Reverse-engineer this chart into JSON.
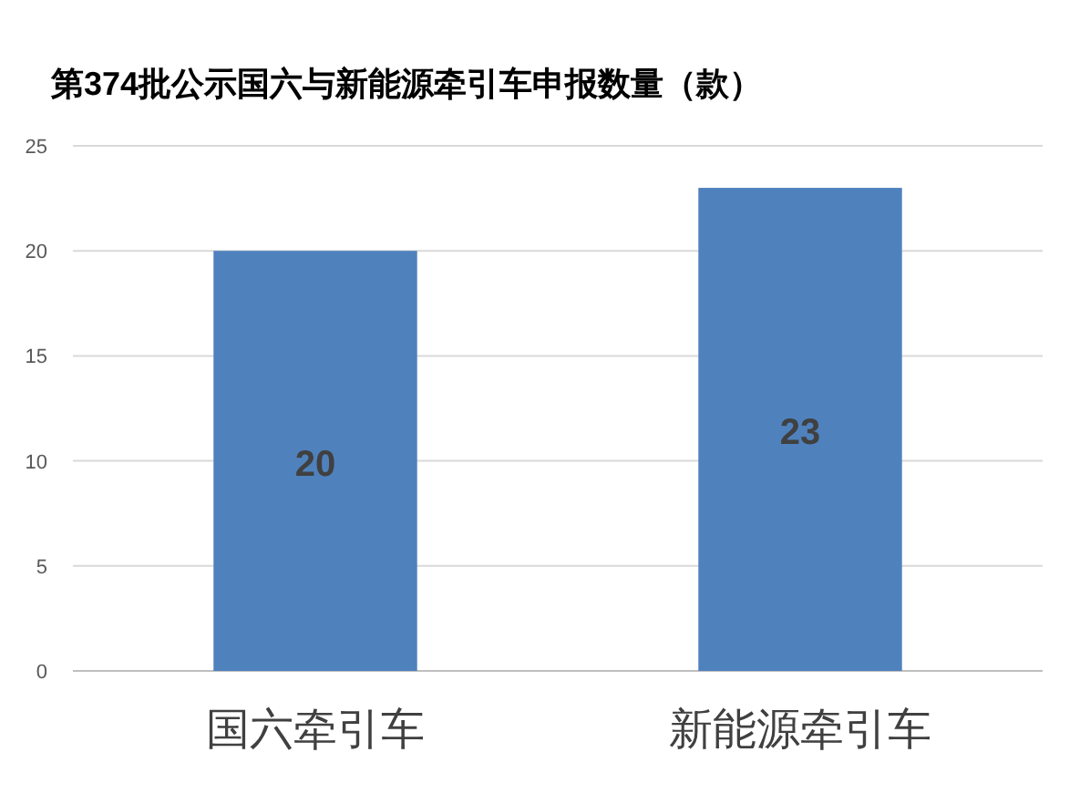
{
  "chart_data": {
    "type": "bar",
    "title": "第374批公示国六与新能源牵引车申报数量（款）",
    "categories": [
      "国六牵引车",
      "新能源牵引车"
    ],
    "values": [
      20,
      23
    ],
    "color": "#4f81bd",
    "ylim": [
      0,
      25
    ],
    "yticks": [
      0,
      5,
      10,
      15,
      20,
      25
    ],
    "grid": "y",
    "data_labels": true
  }
}
